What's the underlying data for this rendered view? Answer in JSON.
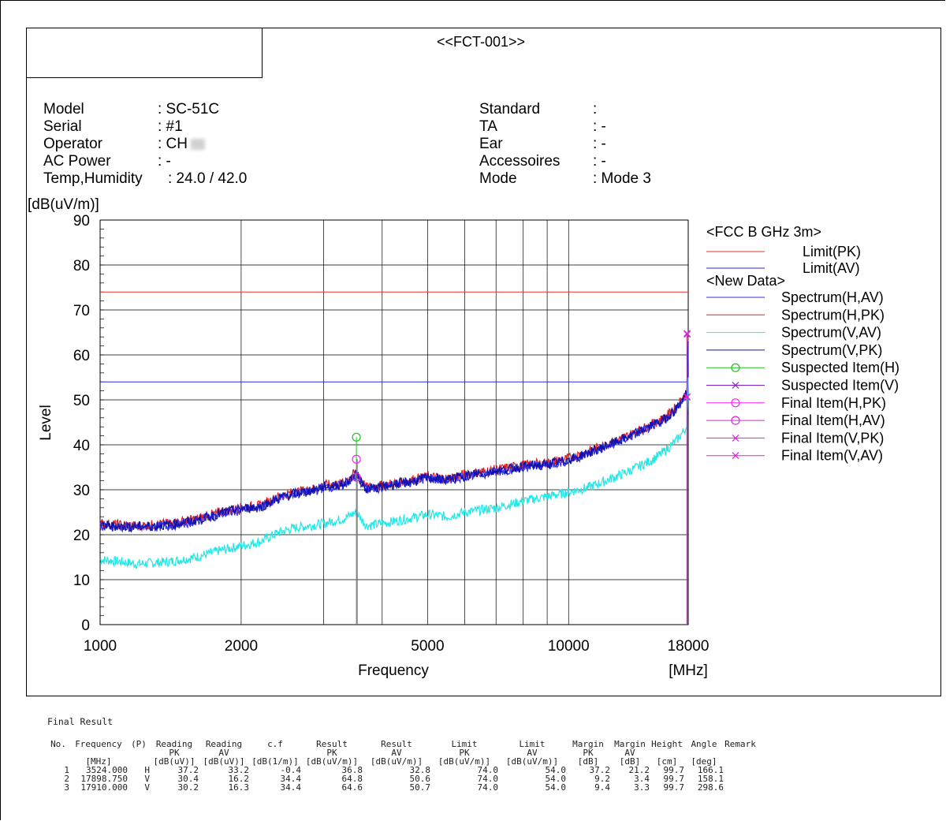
{
  "page_label": "p",
  "report_title": "<<FCT-001>>",
  "meta_left": {
    "labels": [
      "Model",
      "Serial",
      "Operator",
      "AC Power",
      "Temp,Humidity"
    ],
    "values": [
      ": SC-51C",
      ": #1",
      ": CH",
      ": -",
      ": 24.0 / 42.0"
    ]
  },
  "meta_right": {
    "labels": [
      "Standard",
      "TA",
      "Ear",
      "Accessoires",
      "Mode"
    ],
    "values": [
      ":",
      ": -",
      ": -",
      ": -",
      ": Mode 3"
    ]
  },
  "chart_data": {
    "type": "line",
    "title": "",
    "ylabel": "Level",
    "yunit": "[dB(uV/m)]",
    "xlabel": "Frequency",
    "xunit": "[MHz]",
    "xscale": "log",
    "xlim": [
      1000,
      18000
    ],
    "ylim": [
      0,
      90
    ],
    "xticks": [
      1000,
      2000,
      5000,
      10000,
      18000
    ],
    "xtick_labels": [
      "1000",
      "2000",
      "5000",
      "10000",
      "18000"
    ],
    "xgrid": [
      1000,
      2000,
      3000,
      4000,
      5000,
      6000,
      7000,
      8000,
      9000,
      10000,
      18000
    ],
    "yticks": [
      0,
      10,
      20,
      30,
      40,
      50,
      60,
      70,
      80,
      90
    ],
    "ytick_labels": [
      "0",
      "10",
      "20",
      "30",
      "40",
      "50",
      "60",
      "70",
      "80",
      "90"
    ],
    "grid": true,
    "legend_position": "right",
    "legend": {
      "group1": "<FCC B GHz 3m>",
      "group2": "<New Data>",
      "items": [
        {
          "name": "Limit(PK)",
          "color": "#e83030",
          "marker": "none",
          "group": 1
        },
        {
          "name": "Limit(AV)",
          "color": "#2a2ad8",
          "marker": "none",
          "group": 1
        },
        {
          "name": "Spectrum(H,AV)",
          "color": "#3030e0",
          "marker": "none",
          "group": 2
        },
        {
          "name": "Spectrum(H,PK)",
          "color": "#e02020",
          "marker": "none",
          "group": 2
        },
        {
          "name": "Spectrum(V,AV)",
          "color": "#20e8e8",
          "marker": "none",
          "group": 2
        },
        {
          "name": "Spectrum(V,PK)",
          "color": "#1010b0",
          "marker": "none",
          "group": 2
        },
        {
          "name": "Suspected Item(H)",
          "color": "#20c020",
          "marker": "circle",
          "group": 2
        },
        {
          "name": "Suspected Item(V)",
          "color": "#8020c8",
          "marker": "x",
          "group": 2
        },
        {
          "name": "Final Item(H,PK)",
          "color": "#ff20ff",
          "marker": "circle",
          "group": 2
        },
        {
          "name": "Final Item(H,AV)",
          "color": "#e020e0",
          "marker": "circle",
          "group": 2
        },
        {
          "name": "Final Item(V,PK)",
          "color": "#e020e0",
          "marker": "x",
          "group": 2
        },
        {
          "name": "Final Item(V,AV)",
          "color": "#e020e0",
          "marker": "x",
          "group": 2
        }
      ]
    },
    "limits": [
      {
        "name": "Limit(PK)",
        "value": 74.0,
        "color": "#e83030"
      },
      {
        "name": "Limit(AV)",
        "value": 54.0,
        "color": "#2a2ad8"
      }
    ],
    "series": [
      {
        "name": "Spectrum(H,PK)",
        "color": "#e02020",
        "x": [
          1000,
          1200,
          1400,
          1600,
          1800,
          2000,
          2200,
          2400,
          2600,
          2800,
          3000,
          3300,
          3524,
          3700,
          4000,
          4500,
          5000,
          5500,
          6000,
          7000,
          8000,
          9000,
          10000,
          11000,
          12000,
          13000,
          14000,
          15000,
          16000,
          17000,
          17898,
          18000
        ],
        "y": [
          22.5,
          22.0,
          22.5,
          23.5,
          25.0,
          26.0,
          26.5,
          28.5,
          29.5,
          30.0,
          31.0,
          31.5,
          34.0,
          30.5,
          31.0,
          32.0,
          33.0,
          32.5,
          33.5,
          34.5,
          35.5,
          36.0,
          37.0,
          38.5,
          40.0,
          41.5,
          43.0,
          44.5,
          46.0,
          48.5,
          52.0,
          64.0
        ]
      },
      {
        "name": "Spectrum(H,AV)",
        "color": "#3030e0",
        "x": [
          1000,
          1200,
          1400,
          1600,
          1800,
          2000,
          2200,
          2400,
          2600,
          2800,
          3000,
          3300,
          3524,
          3700,
          4000,
          4500,
          5000,
          5500,
          6000,
          7000,
          8000,
          9000,
          10000,
          11000,
          12000,
          13000,
          14000,
          15000,
          16000,
          17000,
          17898,
          18000
        ],
        "y": [
          22.0,
          21.5,
          22.0,
          23.0,
          24.5,
          25.5,
          26.0,
          28.0,
          29.0,
          29.5,
          30.5,
          31.0,
          33.0,
          30.0,
          30.5,
          31.5,
          32.5,
          32.0,
          33.0,
          34.0,
          35.0,
          35.5,
          36.5,
          38.0,
          39.5,
          41.0,
          42.5,
          44.0,
          45.5,
          48.0,
          51.0,
          62.0
        ]
      },
      {
        "name": "Spectrum(V,PK)",
        "color": "#1010b0",
        "x": [
          1000,
          1200,
          1400,
          1600,
          1800,
          2000,
          2200,
          2400,
          2600,
          2800,
          3000,
          3300,
          3524,
          3700,
          4000,
          4500,
          5000,
          5500,
          6000,
          7000,
          8000,
          9000,
          10000,
          11000,
          12000,
          13000,
          14000,
          15000,
          16000,
          17000,
          17898,
          18000
        ],
        "y": [
          22.0,
          21.8,
          22.2,
          23.2,
          24.8,
          25.8,
          26.2,
          28.2,
          29.2,
          29.7,
          30.7,
          31.2,
          33.5,
          30.2,
          30.7,
          31.7,
          32.7,
          32.2,
          33.2,
          34.2,
          35.2,
          35.7,
          36.7,
          38.2,
          39.7,
          41.2,
          42.7,
          44.2,
          45.7,
          48.2,
          51.5,
          63.0
        ]
      },
      {
        "name": "Spectrum(V,AV)",
        "color": "#20e8e8",
        "x": [
          1000,
          1200,
          1400,
          1600,
          1800,
          2000,
          2200,
          2400,
          2600,
          2800,
          3000,
          3300,
          3524,
          3700,
          4000,
          4500,
          5000,
          5500,
          6000,
          7000,
          8000,
          9000,
          10000,
          11000,
          12000,
          13000,
          14000,
          15000,
          16000,
          17000,
          17898,
          18000
        ],
        "y": [
          14.5,
          13.5,
          14.0,
          15.0,
          16.5,
          17.5,
          18.5,
          20.5,
          21.5,
          22.0,
          22.5,
          23.5,
          25.0,
          22.0,
          22.5,
          23.5,
          24.5,
          24.0,
          25.0,
          26.0,
          27.5,
          28.5,
          29.5,
          30.5,
          32.0,
          33.5,
          35.0,
          36.5,
          38.5,
          41.0,
          44.0,
          55.0
        ]
      }
    ],
    "markers": [
      {
        "name": "Suspected Item(H)",
        "x": 3524,
        "y": 41.7,
        "marker": "circle",
        "color": "#20c020"
      },
      {
        "name": "Final Item(H,PK)",
        "x": 3524,
        "y": 36.8,
        "marker": "circle",
        "color": "#ff20ff"
      },
      {
        "name": "Final Item(H,AV)",
        "x": 3524,
        "y": 32.8,
        "marker": "circle",
        "color": "#e020e0"
      },
      {
        "name": "Final Item(V,PK)",
        "x": 17898.75,
        "y": 64.8,
        "marker": "x",
        "color": "#e020e0"
      },
      {
        "name": "Final Item(V,AV)",
        "x": 17898.75,
        "y": 50.6,
        "marker": "x",
        "color": "#e020e0"
      },
      {
        "name": "Final Item(V,PK)",
        "x": 17910,
        "y": 64.6,
        "marker": "x",
        "color": "#e020e0"
      },
      {
        "name": "Final Item(V,AV)",
        "x": 17910,
        "y": 50.7,
        "marker": "x",
        "color": "#e020e0"
      }
    ]
  },
  "final_result": {
    "title": "Final Result",
    "header_row1": [
      "No.",
      "Frequency",
      "(P)",
      "Reading",
      "Reading",
      "c.f",
      "Result",
      "Result",
      "Limit",
      "Limit",
      "Margin",
      "Margin",
      "Height",
      "Angle",
      "Remark"
    ],
    "header_row2": [
      "",
      "",
      "",
      "PK",
      "AV",
      "",
      "PK",
      "AV",
      "PK",
      "AV",
      "PK",
      "AV",
      "",
      "",
      ""
    ],
    "header_units": [
      "",
      "[MHz]",
      "",
      "[dB(uV)]",
      "[dB(uV)]",
      "[dB(1/m)]",
      "[dB(uV/m)]",
      "[dB(uV/m)]",
      "[dB(uV/m)]",
      "[dB(uV/m)]",
      "[dB]",
      "[dB]",
      "[cm]",
      "[deg]",
      ""
    ],
    "rows": [
      [
        "1",
        "3524.000",
        "H",
        "37.2",
        "33.2",
        "-0.4",
        "36.8",
        "32.8",
        "74.0",
        "54.0",
        "37.2",
        "21.2",
        "99.7",
        "166.1",
        ""
      ],
      [
        "2",
        "17898.750",
        "V",
        "30.4",
        "16.2",
        "34.4",
        "64.8",
        "50.6",
        "74.0",
        "54.0",
        "9.2",
        "3.4",
        "99.7",
        "158.1",
        ""
      ],
      [
        "3",
        "17910.000",
        "V",
        "30.2",
        "16.3",
        "34.4",
        "64.6",
        "50.7",
        "74.0",
        "54.0",
        "9.4",
        "3.3",
        "99.7",
        "298.6",
        ""
      ]
    ]
  }
}
